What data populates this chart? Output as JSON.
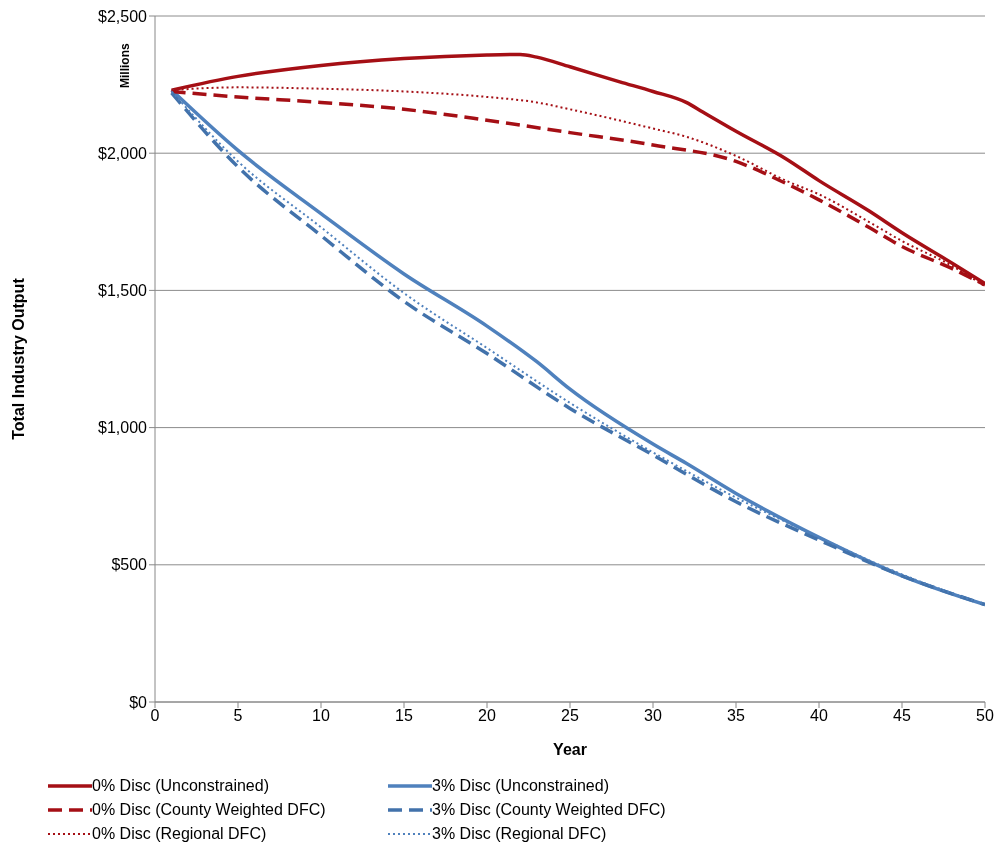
{
  "chart_data": {
    "type": "line",
    "xlabel": "Year",
    "ylabel": "Total Industry Output",
    "annotations": [
      "Millions"
    ],
    "xlim": [
      0,
      50
    ],
    "xticks": [
      0,
      5,
      10,
      15,
      20,
      25,
      30,
      35,
      40,
      45,
      50
    ],
    "ylim": [
      0,
      2500
    ],
    "yticks": [
      {
        "value": 0,
        "label": "$0"
      },
      {
        "value": 500,
        "label": "$500"
      },
      {
        "value": 1000,
        "label": "$1,000"
      },
      {
        "value": 1500,
        "label": "$1,500"
      },
      {
        "value": 2000,
        "label": "$2,000"
      },
      {
        "value": 2500,
        "label": "$2,500"
      }
    ],
    "grid": "y",
    "legend": "bottom",
    "series": [
      {
        "name": "0% Disc (Unconstrained)",
        "color": "#a50f15",
        "line_style": "solid",
        "x": [
          1,
          5,
          10,
          15,
          20,
          22,
          23,
          25,
          28,
          30,
          32,
          33,
          35,
          38,
          40,
          43,
          45,
          48,
          50
        ],
        "values": [
          2230,
          2280,
          2320,
          2345,
          2358,
          2360,
          2350,
          2315,
          2260,
          2225,
          2185,
          2150,
          2080,
          1980,
          1900,
          1790,
          1710,
          1600,
          1525
        ]
      },
      {
        "name": "3% Disc (Unconstrained)",
        "color": "#4f81bd",
        "line_style": "solid",
        "x": [
          1,
          5,
          10,
          15,
          20,
          23,
          25,
          30,
          32,
          35,
          40,
          45,
          50
        ],
        "values": [
          2230,
          2010,
          1780,
          1560,
          1370,
          1240,
          1140,
          940,
          870,
          760,
          600,
          460,
          355
        ]
      },
      {
        "name": "0% Disc (County Weighted DFC)",
        "color": "#a50f15",
        "line_style": "dashed",
        "x": [
          1,
          5,
          10,
          15,
          20,
          25,
          30,
          35,
          38,
          40,
          43,
          45,
          48,
          50
        ],
        "values": [
          2225,
          2205,
          2185,
          2160,
          2120,
          2075,
          2030,
          1970,
          1890,
          1830,
          1730,
          1660,
          1580,
          1520
        ]
      },
      {
        "name": "3% Disc (County Weighted DFC)",
        "color": "#4272ab",
        "line_style": "dashed",
        "x": [
          1,
          5,
          10,
          15,
          20,
          25,
          30,
          35,
          40,
          45,
          50
        ],
        "values": [
          2220,
          1950,
          1700,
          1460,
          1270,
          1070,
          900,
          730,
          590,
          460,
          355
        ]
      },
      {
        "name": "0% Disc (Regional DFC)",
        "color": "#a50f15",
        "line_style": "dotted",
        "x": [
          1,
          5,
          10,
          15,
          20,
          23,
          25,
          30,
          32,
          35,
          38,
          40,
          43,
          45,
          48,
          50
        ],
        "values": [
          2230,
          2240,
          2235,
          2225,
          2205,
          2185,
          2160,
          2090,
          2060,
          1990,
          1900,
          1850,
          1750,
          1680,
          1590,
          1515
        ]
      },
      {
        "name": "3% Disc (Regional DFC)",
        "color": "#4f81bd",
        "line_style": "dotted",
        "x": [
          1,
          5,
          10,
          15,
          20,
          25,
          30,
          35,
          40,
          45,
          50
        ],
        "values": [
          2225,
          1970,
          1730,
          1490,
          1290,
          1090,
          910,
          745,
          600,
          465,
          355
        ]
      }
    ]
  }
}
